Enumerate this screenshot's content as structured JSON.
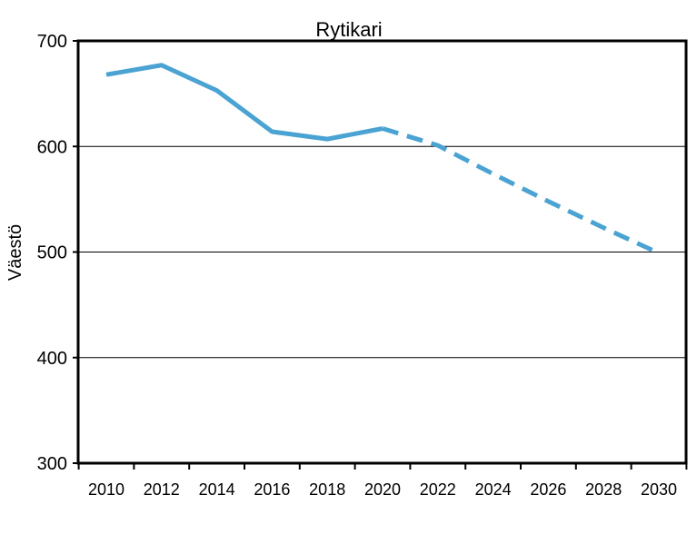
{
  "chart_data": {
    "type": "line",
    "title": "Rytikari",
    "xlabel": "",
    "ylabel": "Väestö",
    "ylim": [
      300,
      700
    ],
    "yticks": [
      300,
      400,
      500,
      600,
      700
    ],
    "xticks": [
      2010,
      2012,
      2014,
      2016,
      2018,
      2020,
      2022,
      2024,
      2026,
      2028,
      2030
    ],
    "grid": "horizontal",
    "line_color": "#4aa3d2",
    "series": [
      {
        "style": "solid",
        "x": [
          2010,
          2012,
          2014,
          2016,
          2018,
          2020
        ],
        "values": [
          668,
          677,
          653,
          614,
          607,
          617
        ]
      },
      {
        "style": "dashed",
        "x": [
          2020,
          2022,
          2024,
          2026,
          2028,
          2030
        ],
        "values": [
          617,
          601,
          574,
          548,
          523,
          499
        ]
      }
    ]
  }
}
